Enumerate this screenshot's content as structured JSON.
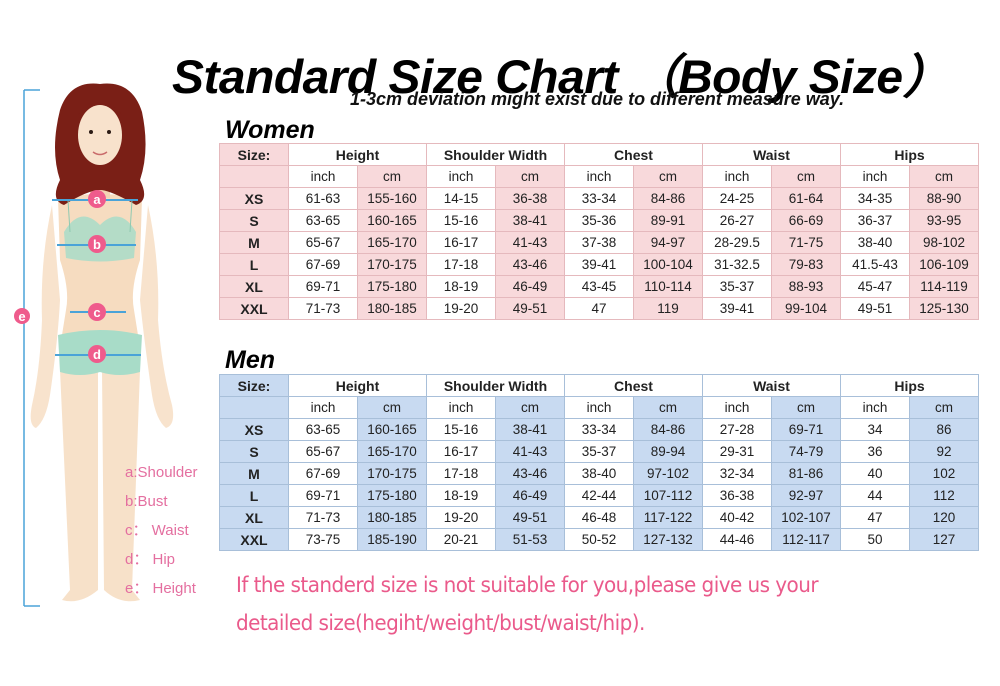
{
  "title": "Standard Size Chart （Body Size）",
  "subtitle": "1-3cm deviation might exist due to different measure way.",
  "figure": {
    "markers": [
      "a",
      "b",
      "c",
      "d",
      "e"
    ],
    "legend": [
      "a:Shoulder",
      "b:Bust",
      "c： Waist",
      "d： Hip",
      "e： Height"
    ],
    "colors": {
      "marker": "#ef5b8c",
      "measure_line": "#4aa3d8",
      "hair": "#7a1f16",
      "skin": "#f6dcc0",
      "clothing": "#a8dcc8",
      "legend_text": "#e46fa0"
    }
  },
  "tables": {
    "size_header": "Size:",
    "measurements": [
      "Height",
      "Shoulder Width",
      "Chest",
      "Waist",
      "Hips"
    ],
    "units": [
      "inch",
      "cm",
      "inch",
      "cm",
      "inch",
      "cm",
      "inch",
      "cm",
      "inch",
      "cm"
    ],
    "women": {
      "label": "Women",
      "tint_color": "#f8d9db",
      "rows": [
        {
          "size": "XS",
          "values": [
            "61-63",
            "155-160",
            "14-15",
            "36-38",
            "33-34",
            "84-86",
            "24-25",
            "61-64",
            "34-35",
            "88-90"
          ]
        },
        {
          "size": "S",
          "values": [
            "63-65",
            "160-165",
            "15-16",
            "38-41",
            "35-36",
            "89-91",
            "26-27",
            "66-69",
            "36-37",
            "93-95"
          ]
        },
        {
          "size": "M",
          "values": [
            "65-67",
            "165-170",
            "16-17",
            "41-43",
            "37-38",
            "94-97",
            "28-29.5",
            "71-75",
            "38-40",
            "98-102"
          ]
        },
        {
          "size": "L",
          "values": [
            "67-69",
            "170-175",
            "17-18",
            "43-46",
            "39-41",
            "100-104",
            "31-32.5",
            "79-83",
            "41.5-43",
            "106-109"
          ]
        },
        {
          "size": "XL",
          "values": [
            "69-71",
            "175-180",
            "18-19",
            "46-49",
            "43-45",
            "110-114",
            "35-37",
            "88-93",
            "45-47",
            "114-119"
          ]
        },
        {
          "size": "XXL",
          "values": [
            "71-73",
            "180-185",
            "19-20",
            "49-51",
            "47",
            "119",
            "39-41",
            "99-104",
            "49-51",
            "125-130"
          ]
        }
      ]
    },
    "men": {
      "label": "Men",
      "tint_color": "#c8daf1",
      "rows": [
        {
          "size": "XS",
          "values": [
            "63-65",
            "160-165",
            "15-16",
            "38-41",
            "33-34",
            "84-86",
            "27-28",
            "69-71",
            "34",
            "86"
          ]
        },
        {
          "size": "S",
          "values": [
            "65-67",
            "165-170",
            "16-17",
            "41-43",
            "35-37",
            "89-94",
            "29-31",
            "74-79",
            "36",
            "92"
          ]
        },
        {
          "size": "M",
          "values": [
            "67-69",
            "170-175",
            "17-18",
            "43-46",
            "38-40",
            "97-102",
            "32-34",
            "81-86",
            "40",
            "102"
          ]
        },
        {
          "size": "L",
          "values": [
            "69-71",
            "175-180",
            "18-19",
            "46-49",
            "42-44",
            "107-112",
            "36-38",
            "92-97",
            "44",
            "112"
          ]
        },
        {
          "size": "XL",
          "values": [
            "71-73",
            "180-185",
            "19-20",
            "49-51",
            "46-48",
            "117-122",
            "40-42",
            "102-107",
            "47",
            "120"
          ]
        },
        {
          "size": "XXL",
          "values": [
            "73-75",
            "185-190",
            "20-21",
            "51-53",
            "50-52",
            "127-132",
            "44-46",
            "112-117",
            "50",
            "127"
          ]
        }
      ]
    }
  },
  "notice": {
    "line1": "If the standerd size is not suitable for you,please give us your",
    "line2": "detailed size(hegiht/weight/bust/waist/hip).",
    "color": "#ea5a8b"
  }
}
